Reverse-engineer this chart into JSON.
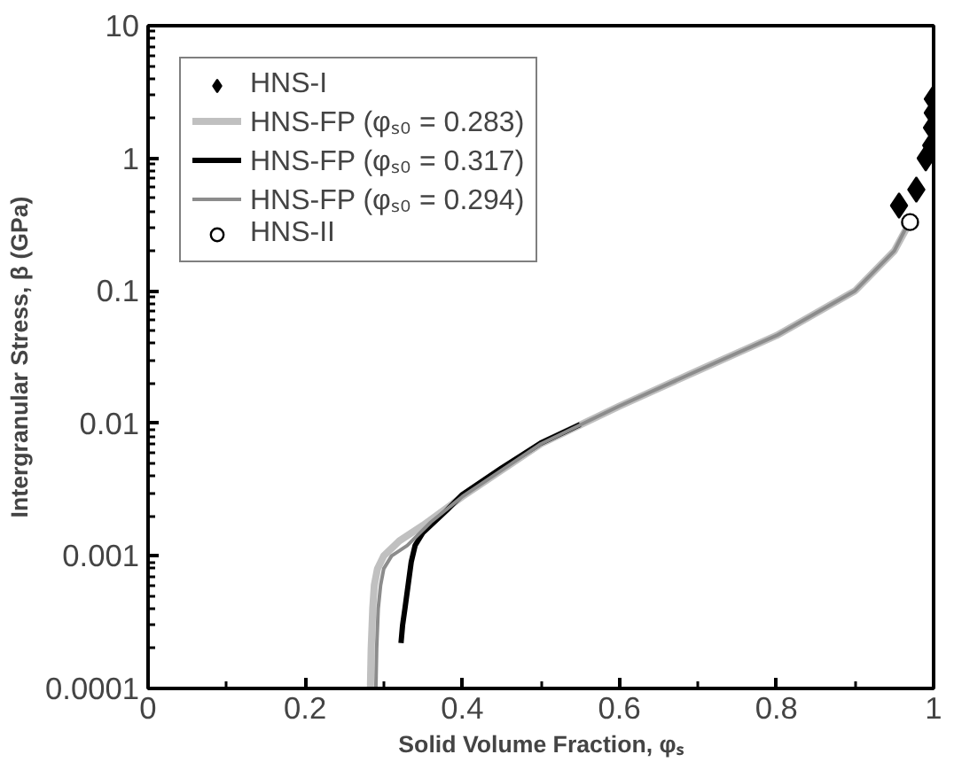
{
  "chart_data": {
    "type": "line",
    "xlabel": "Solid Volume Fraction, φₛ",
    "ylabel": "Intergranular Stress, β (GPa)",
    "xlim": [
      0,
      1
    ],
    "xticks": [
      0,
      0.2,
      0.4,
      0.6,
      0.8,
      1
    ],
    "ylim": [
      0.0001,
      10
    ],
    "yticks": [
      0.0001,
      0.001,
      0.01,
      0.1,
      1,
      10
    ],
    "log": "y",
    "grid": false,
    "legend": "top left",
    "series": [
      {
        "name": "HNS-I",
        "type": "scatter",
        "marker": "diamond",
        "color": "#000000",
        "x": [
          0.956,
          0.978,
          0.99,
          0.997,
          0.998,
          0.999,
          0.999
        ],
        "values": [
          0.44,
          0.58,
          1.0,
          1.25,
          1.7,
          2.2,
          2.8
        ]
      },
      {
        "name": "HNS-FP (φₛ₀ = 0.283)",
        "color": "#c0c0c0",
        "x": [
          0.283,
          0.284,
          0.286,
          0.288,
          0.292,
          0.3,
          0.32,
          0.35,
          0.4,
          0.5,
          0.6,
          0.7,
          0.8,
          0.9,
          0.95,
          0.966
        ],
        "values": [
          0.0001,
          0.0002,
          0.0004,
          0.0006,
          0.0008,
          0.001,
          0.0013,
          0.0017,
          0.0028,
          0.007,
          0.0135,
          0.025,
          0.046,
          0.1,
          0.2,
          0.3
        ]
      },
      {
        "name": "HNS-FP (φₛ₀ = 0.317)",
        "color": "#000000",
        "x": [
          0.322,
          0.324,
          0.327,
          0.331,
          0.335,
          0.34,
          0.35,
          0.38,
          0.4,
          0.45,
          0.5,
          0.55
        ],
        "values": [
          0.00022,
          0.0003,
          0.0004,
          0.0006,
          0.0009,
          0.0012,
          0.0015,
          0.0022,
          0.0029,
          0.0046,
          0.0071,
          0.0098
        ]
      },
      {
        "name": "HNS-FP (φₛ₀ = 0.294)",
        "color": "#8c8c8c",
        "x": [
          0.29,
          0.291,
          0.293,
          0.296,
          0.3,
          0.31,
          0.33,
          0.36,
          0.4,
          0.5,
          0.6,
          0.7,
          0.8,
          0.9,
          0.95,
          0.965
        ],
        "values": [
          0.0001,
          0.0002,
          0.0004,
          0.0006,
          0.0008,
          0.001,
          0.0012,
          0.0018,
          0.0028,
          0.007,
          0.0135,
          0.025,
          0.046,
          0.1,
          0.2,
          0.3
        ]
      },
      {
        "name": "HNS-II",
        "type": "scatter",
        "marker": "circle",
        "color": "#000000",
        "x": [
          0.97
        ],
        "values": [
          0.33
        ]
      }
    ]
  }
}
